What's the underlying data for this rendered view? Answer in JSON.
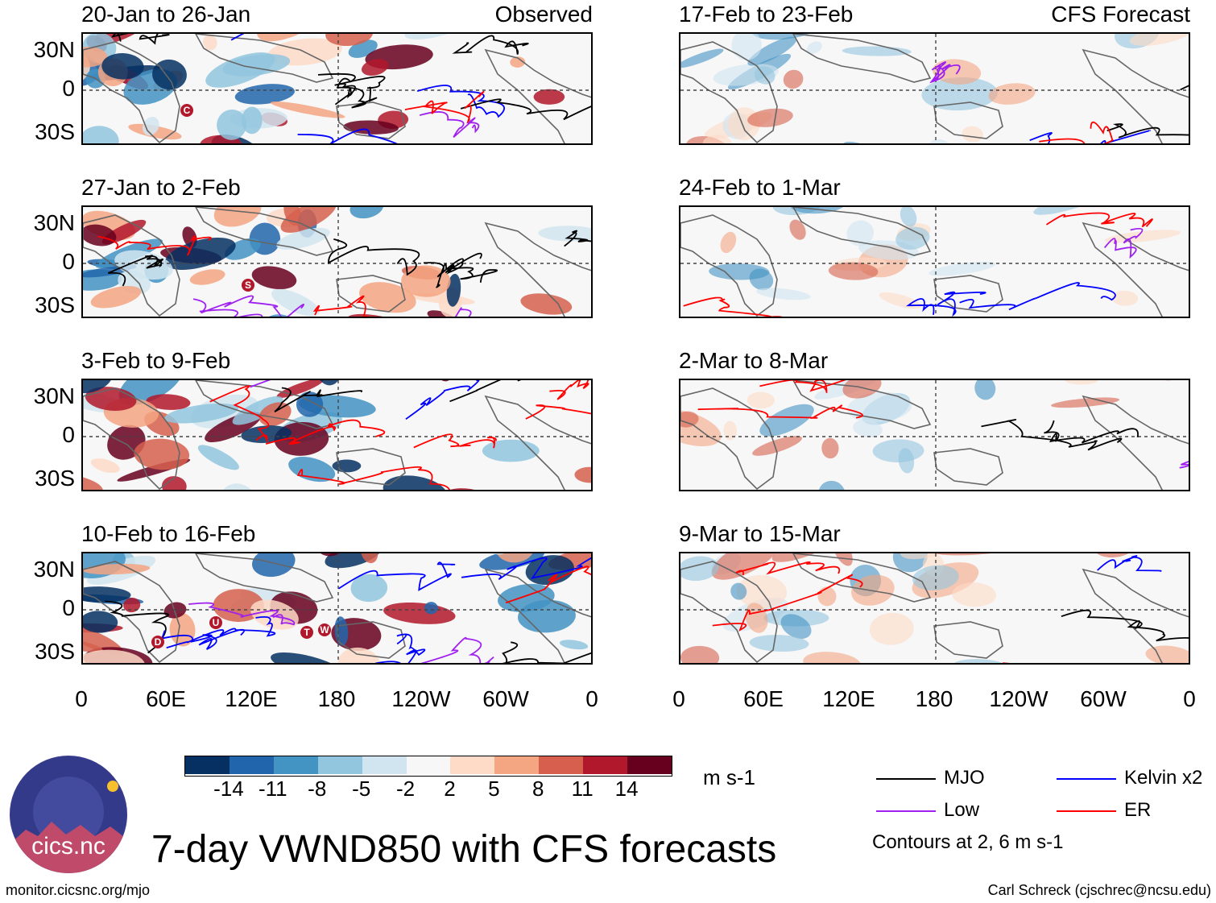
{
  "panels": [
    {
      "title": "20-Jan to 26-Jan",
      "label": "Observed",
      "type": "observed"
    },
    {
      "title": "27-Jan to 2-Feb",
      "label": "",
      "type": "observed"
    },
    {
      "title": "3-Feb to 9-Feb",
      "label": "",
      "type": "observed"
    },
    {
      "title": "10-Feb to 16-Feb",
      "label": "",
      "type": "observed"
    },
    {
      "title": "17-Feb to 23-Feb",
      "label": "CFS Forecast",
      "type": "forecast"
    },
    {
      "title": "24-Feb to 1-Mar",
      "label": "",
      "type": "forecast"
    },
    {
      "title": "2-Mar to 8-Mar",
      "label": "",
      "type": "forecast"
    },
    {
      "title": "9-Mar to 15-Mar",
      "label": "",
      "type": "forecast"
    }
  ],
  "lat_labels": [
    "30N",
    "0",
    "30S"
  ],
  "lon_labels": [
    "0",
    "60E",
    "120E",
    "180",
    "120W",
    "60W",
    "0"
  ],
  "storm_labels": [
    {
      "panel": 0,
      "label": "C"
    },
    {
      "panel": 1,
      "label": "S"
    },
    {
      "panel": 3,
      "label": "D"
    },
    {
      "panel": 3,
      "label": "U"
    },
    {
      "panel": 3,
      "label": "T"
    },
    {
      "panel": 3,
      "label": "W"
    }
  ],
  "colorbar": {
    "colors": [
      "#053061",
      "#2166ac",
      "#4393c3",
      "#92c5de",
      "#d1e5f0",
      "#f7f7f7",
      "#fddbc7",
      "#f4a582",
      "#d6604d",
      "#b2182b",
      "#67001f"
    ],
    "ticks": [
      "-14",
      "-11",
      "-8",
      "-5",
      "-2",
      "2",
      "5",
      "8",
      "11",
      "14"
    ],
    "units": "m s-1"
  },
  "legend": {
    "items": [
      {
        "label": "MJO",
        "color": "#000000"
      },
      {
        "label": "Kelvin x2",
        "color": "#0000ff"
      },
      {
        "label": "Low",
        "color": "#a020f0"
      },
      {
        "label": "ER",
        "color": "#ff0000"
      }
    ],
    "note": "Contours at 2, 6 m s-1"
  },
  "main_title": "7-day VWND850 with CFS forecasts",
  "logo_text": "cics.nc",
  "footer_left": "monitor.cicsnc.org/mjo",
  "footer_right": "Carl Schreck (cjschrec@ncsu.edu)"
}
